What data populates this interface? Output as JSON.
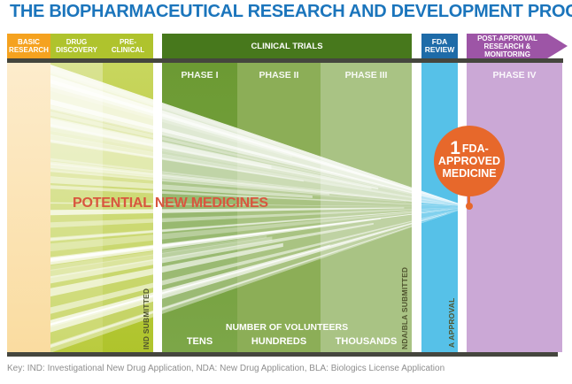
{
  "title": "THE BIOPHARMACEUTICAL RESEARCH AND DEVELOPMENT PROCESS",
  "stages": {
    "basic": {
      "line1": "BASIC",
      "line2": "RESEARCH"
    },
    "discovery": {
      "line1": "DRUG",
      "line2": "DISCOVERY"
    },
    "preclinical": {
      "line1": "PRE-",
      "line2": "CLINICAL"
    },
    "clinical": {
      "label": "CLINICAL TRIALS"
    },
    "fda": {
      "line1": "FDA",
      "line2": "REVIEW"
    },
    "post": {
      "line1": "POST-APPROVAL",
      "line2": "RESEARCH &",
      "line3": "MONITORING"
    }
  },
  "phases": {
    "p1": "PHASE I",
    "p2": "PHASE II",
    "p3": "PHASE III",
    "p4": "PHASE IV"
  },
  "funnel": {
    "potential_label": "POTENTIAL NEW MEDICINES"
  },
  "approved": {
    "count": "1",
    "line1": "FDA-",
    "line2": "APPROVED",
    "line3": "MEDICINE"
  },
  "milestones": {
    "ind": "IND SUBMITTED",
    "nda": "NDA/BLA SUBMITTED",
    "approval": "A APPROVAL"
  },
  "volunteers": {
    "header": "NUMBER OF VOLUNTEERS",
    "tens": "TENS",
    "hundreds": "HUNDREDS",
    "thousands": "THOUSANDS"
  },
  "key_note": "Key: IND: Investigational New Drug Application, NDA: New Drug Application, BLA: Biologics License Application",
  "colors": {
    "title-blue": "#1B75BC",
    "basic-header": "#F5A21F",
    "yellowgreen-header": "#AFC32D",
    "clinical-header": "#47781C",
    "fda-header": "#1E6BA8",
    "post-header": "#9D55A6",
    "shadow-bar": "#45463E",
    "basic-col-top": "#FDECCC",
    "basic-col-bottom": "#FADCA0",
    "discovery-col-top": "#D9E392",
    "discovery-col-bottom": "#BACB3E",
    "preclinical-col-top": "#C8D65E",
    "preclinical-col-bottom": "#AFC42C",
    "phase1-col-top": "#6C9A33",
    "phase1-col-bottom": "#7CA648",
    "phase2-col": "#8CAE57",
    "phase3-col": "#A9C384",
    "fda-col": "#56C1E8",
    "phase4-col": "#CBA8D6",
    "circle-orange": "#E7682B",
    "potential-red": "#D8563E",
    "milestone-text": "#50552F",
    "key-gray": "#8E8E8E"
  }
}
